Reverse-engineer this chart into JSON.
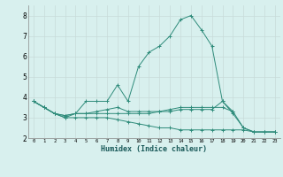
{
  "xlabel": "Humidex (Indice chaleur)",
  "x": [
    0,
    1,
    2,
    3,
    4,
    5,
    6,
    7,
    8,
    9,
    10,
    11,
    12,
    13,
    14,
    15,
    16,
    17,
    18,
    19,
    20,
    21,
    22,
    23
  ],
  "series": [
    [
      3.8,
      3.5,
      3.2,
      3.0,
      3.2,
      3.8,
      3.8,
      3.8,
      4.6,
      3.8,
      5.5,
      6.2,
      6.5,
      7.0,
      7.8,
      8.0,
      7.3,
      6.5,
      3.8,
      3.3,
      null,
      null,
      null,
      null
    ],
    [
      3.8,
      3.5,
      3.2,
      3.1,
      3.2,
      3.2,
      3.2,
      3.2,
      3.2,
      3.2,
      3.2,
      3.2,
      3.3,
      3.4,
      3.5,
      3.5,
      3.5,
      3.5,
      3.5,
      3.3,
      2.5,
      2.3,
      2.3,
      2.3
    ],
    [
      3.8,
      3.5,
      3.2,
      3.0,
      3.0,
      3.0,
      3.0,
      3.0,
      2.9,
      2.8,
      2.7,
      2.6,
      2.5,
      2.5,
      2.4,
      2.4,
      2.4,
      2.4,
      2.4,
      2.4,
      2.4,
      2.3,
      2.3,
      2.3
    ],
    [
      3.8,
      3.5,
      3.2,
      3.1,
      3.2,
      3.2,
      3.3,
      3.4,
      3.5,
      3.3,
      3.3,
      3.3,
      3.3,
      3.3,
      3.4,
      3.4,
      3.4,
      3.4,
      3.8,
      3.2,
      2.5,
      2.3,
      2.3,
      2.3
    ]
  ],
  "line_color": "#2e8b7a",
  "bg_color": "#d8f0ee",
  "grid_major_color": "#c8dbd9",
  "grid_minor_color": "#e0eeec",
  "ylim": [
    2,
    8.5
  ],
  "xlim": [
    -0.5,
    23.5
  ],
  "yticks": [
    2,
    3,
    4,
    5,
    6,
    7,
    8
  ],
  "xticks": [
    0,
    1,
    2,
    3,
    4,
    5,
    6,
    7,
    8,
    9,
    10,
    11,
    12,
    13,
    14,
    15,
    16,
    17,
    18,
    19,
    20,
    21,
    22,
    23
  ]
}
